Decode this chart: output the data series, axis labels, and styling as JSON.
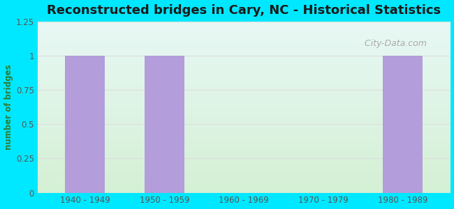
{
  "title": "Reconstructed bridges in Cary, NC - Historical Statistics",
  "categories": [
    "1940 - 1949",
    "1950 - 1959",
    "1960 - 1969",
    "1970 - 1979",
    "1980 - 1989"
  ],
  "values": [
    1,
    1,
    0,
    0,
    1
  ],
  "bar_color": "#b39ddb",
  "ylabel": "number of bridges",
  "ylim": [
    0,
    1.25
  ],
  "yticks": [
    0,
    0.25,
    0.5,
    0.75,
    1,
    1.25
  ],
  "background_outer": "#00e8ff",
  "bg_bottom_left": "#d4f0d4",
  "bg_top_right": "#e8f8f5",
  "title_fontsize": 13,
  "title_color": "#1a1a1a",
  "axis_label_color": "#2e7d32",
  "tick_label_color": "#555555",
  "watermark_text": "  City-Data.com",
  "watermark_color": "#aaaaaa",
  "grid_color": "#dddddd"
}
